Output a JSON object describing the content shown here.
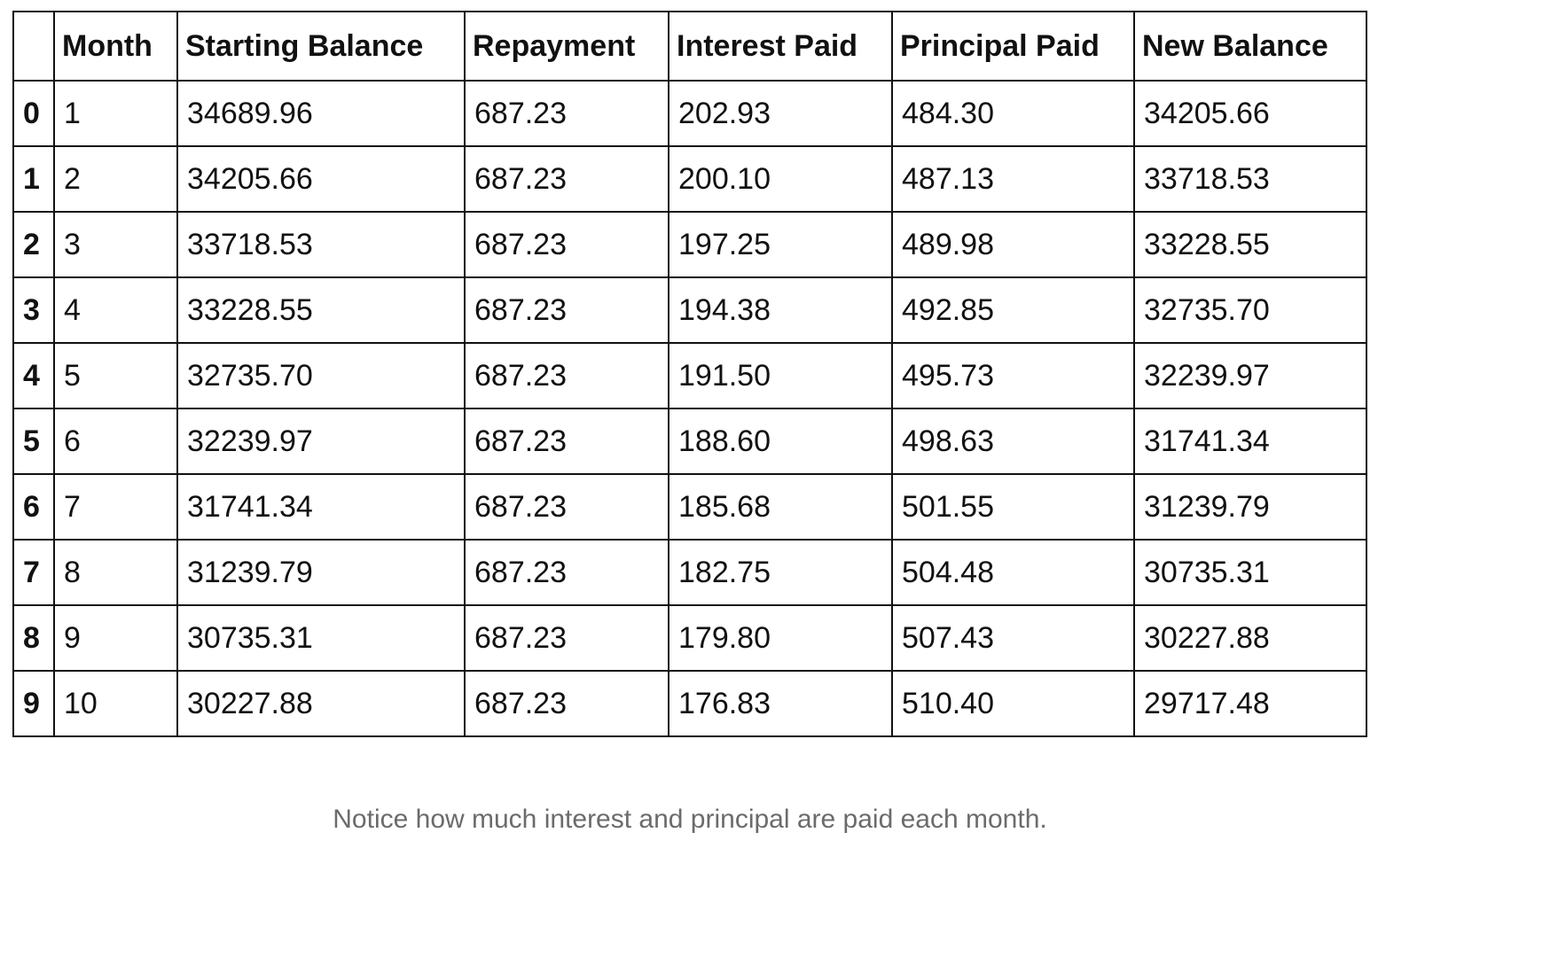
{
  "table": {
    "columns": [
      "",
      "Month",
      "Starting Balance",
      "Repayment",
      "Interest Paid",
      "Principal Paid",
      "New Balance"
    ],
    "rows": [
      {
        "index": "0",
        "cells": [
          "1",
          "34689.96",
          "687.23",
          "202.93",
          "484.30",
          "34205.66"
        ]
      },
      {
        "index": "1",
        "cells": [
          "2",
          "34205.66",
          "687.23",
          "200.10",
          "487.13",
          "33718.53"
        ]
      },
      {
        "index": "2",
        "cells": [
          "3",
          "33718.53",
          "687.23",
          "197.25",
          "489.98",
          "33228.55"
        ]
      },
      {
        "index": "3",
        "cells": [
          "4",
          "33228.55",
          "687.23",
          "194.38",
          "492.85",
          "32735.70"
        ]
      },
      {
        "index": "4",
        "cells": [
          "5",
          "32735.70",
          "687.23",
          "191.50",
          "495.73",
          "32239.97"
        ]
      },
      {
        "index": "5",
        "cells": [
          "6",
          "32239.97",
          "687.23",
          "188.60",
          "498.63",
          "31741.34"
        ]
      },
      {
        "index": "6",
        "cells": [
          "7",
          "31741.34",
          "687.23",
          "185.68",
          "501.55",
          "31239.79"
        ]
      },
      {
        "index": "7",
        "cells": [
          "8",
          "31239.79",
          "687.23",
          "182.75",
          "504.48",
          "30735.31"
        ]
      },
      {
        "index": "8",
        "cells": [
          "9",
          "30735.31",
          "687.23",
          "179.80",
          "507.43",
          "30227.88"
        ]
      },
      {
        "index": "9",
        "cells": [
          "10",
          "30227.88",
          "687.23",
          "176.83",
          "510.40",
          "29717.48"
        ]
      }
    ]
  },
  "caption": "Notice how much interest and principal are paid each month."
}
